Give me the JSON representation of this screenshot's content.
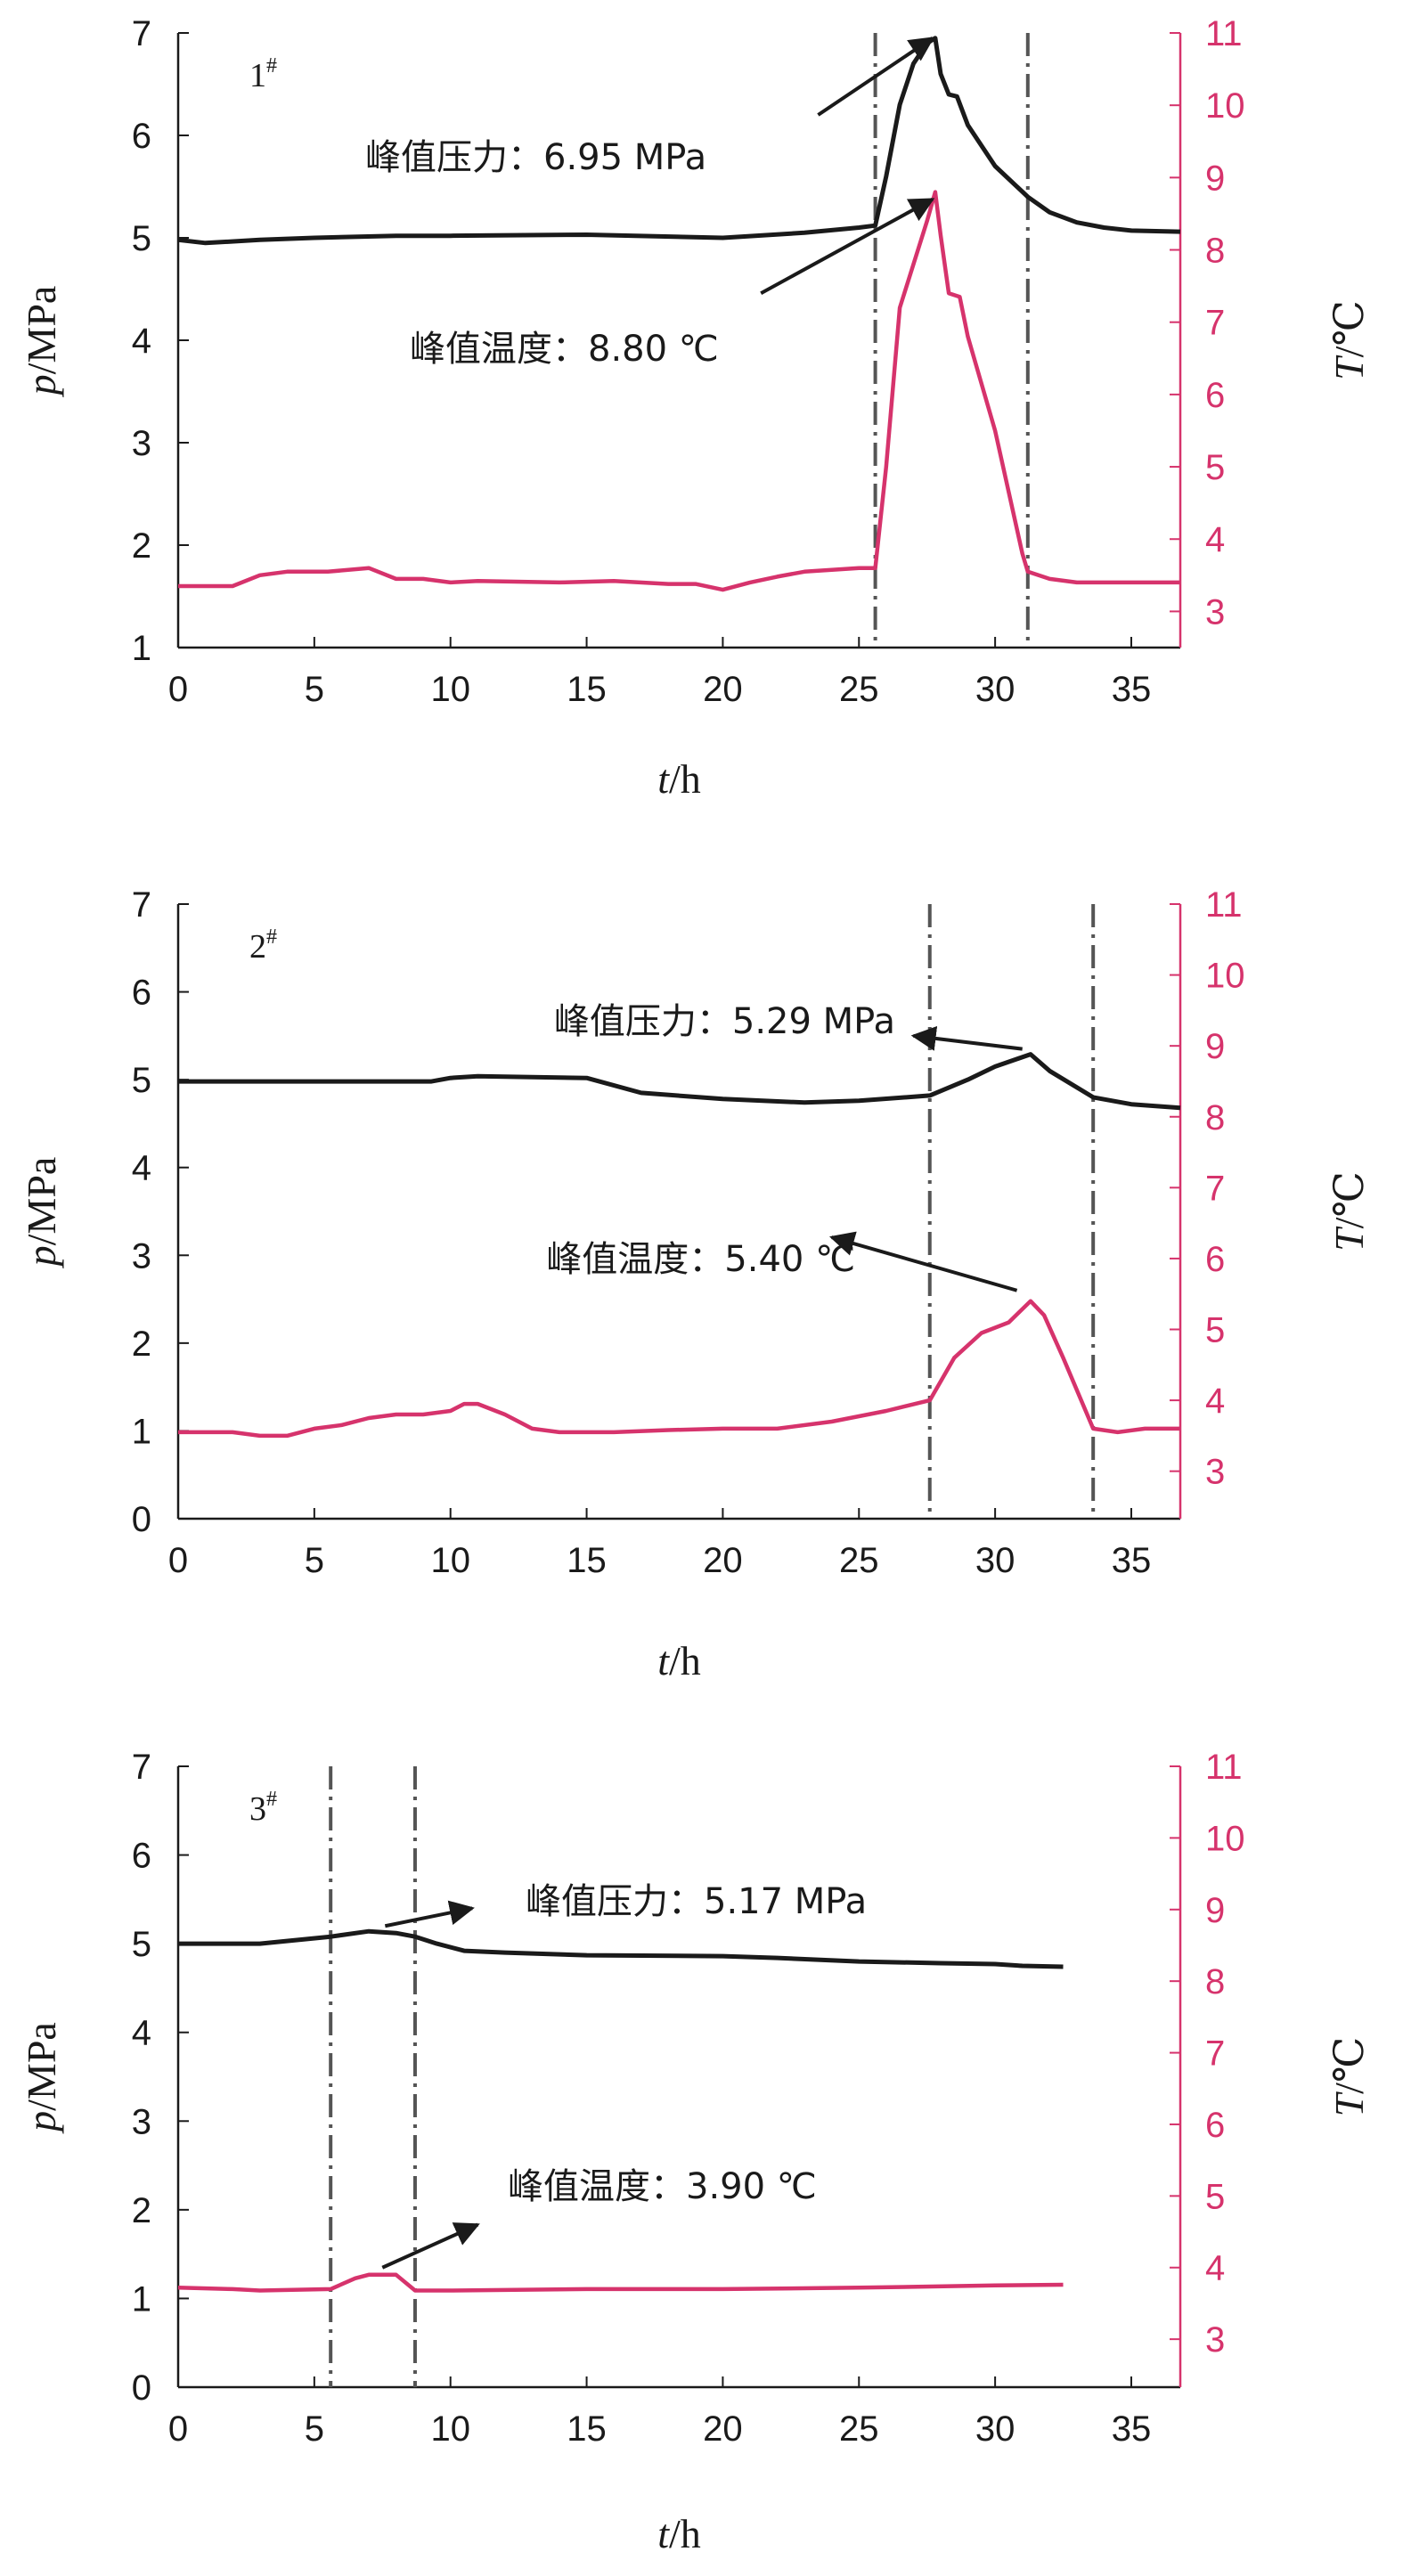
{
  "colors": {
    "pressure": "#1a1a1a",
    "temperature": "#d6336c",
    "axis_right": "#d6336c",
    "marker_dark": "#555555",
    "marker_green": "#1f8a70",
    "arrow": "#1a1a1a"
  },
  "chart_data": [
    {
      "type": "line",
      "panel_label": "1",
      "panel_label_sup": "#",
      "xlabel_italic": "t",
      "xlabel_unit": "/h",
      "ylabel_italic": "p",
      "ylabel_unit": "/MPa",
      "y2label_italic": "T",
      "y2label_unit": "/℃",
      "xlim": [
        0,
        36.8
      ],
      "ylim": [
        1,
        7
      ],
      "y2lim": [
        2.5,
        11
      ],
      "xticks": [
        0,
        5,
        10,
        15,
        20,
        25,
        30,
        35
      ],
      "yticks": [
        1,
        2,
        3,
        4,
        5,
        6,
        7
      ],
      "y2ticks": [
        3,
        4,
        5,
        6,
        7,
        8,
        9,
        10,
        11
      ],
      "markers": [
        25.6,
        31.2
      ],
      "series": [
        {
          "axis": "left",
          "x": [
            0,
            1,
            3,
            5,
            8,
            10,
            15,
            20,
            23,
            25,
            25.6,
            26,
            26.5,
            27,
            27.5,
            27.8,
            28,
            28.3,
            28.6,
            29,
            30,
            31.2,
            32,
            33,
            34,
            35,
            36.8
          ],
          "y": [
            4.98,
            4.95,
            4.98,
            5.0,
            5.02,
            5.02,
            5.03,
            5.0,
            5.05,
            5.1,
            5.12,
            5.6,
            6.3,
            6.7,
            6.9,
            6.95,
            6.6,
            6.4,
            6.38,
            6.1,
            5.7,
            5.4,
            5.25,
            5.15,
            5.1,
            5.07,
            5.06
          ]
        },
        {
          "axis": "right",
          "x": [
            0,
            2,
            3,
            4,
            5.5,
            7,
            8,
            9,
            10,
            11,
            14,
            16,
            18,
            19,
            20,
            21,
            22,
            23,
            25,
            25.6,
            26,
            26.5,
            27,
            27.5,
            27.8,
            28,
            28.3,
            28.7,
            29,
            30,
            31,
            31.2,
            32,
            33,
            35,
            36.8
          ],
          "y": [
            3.35,
            3.35,
            3.5,
            3.55,
            3.55,
            3.6,
            3.45,
            3.45,
            3.4,
            3.42,
            3.4,
            3.42,
            3.38,
            3.38,
            3.3,
            3.4,
            3.48,
            3.55,
            3.6,
            3.6,
            5.0,
            7.2,
            7.8,
            8.4,
            8.8,
            8.2,
            7.4,
            7.35,
            6.8,
            5.5,
            3.8,
            3.55,
            3.45,
            3.4,
            3.4,
            3.4
          ]
        }
      ],
      "annotations": [
        {
          "text": "峰值压力：6.95 MPa",
          "series_axis": "left",
          "tip": [
            27.7,
            6.95
          ],
          "tail": [
            23.5,
            6.2
          ]
        },
        {
          "text": "峰值温度：8.80 ℃",
          "series_axis": "right",
          "tip": [
            27.7,
            8.7
          ],
          "tail": [
            21.4,
            7.4
          ]
        }
      ]
    },
    {
      "type": "line",
      "panel_label": "2",
      "panel_label_sup": "#",
      "xlabel_italic": "t",
      "xlabel_unit": "/h",
      "ylabel_italic": "p",
      "ylabel_unit": "/MPa",
      "y2label_italic": "T",
      "y2label_unit": "/℃",
      "xlim": [
        0,
        36.8
      ],
      "ylim": [
        0,
        7
      ],
      "y2lim": [
        2.33,
        11
      ],
      "xticks": [
        0,
        5,
        10,
        15,
        20,
        25,
        30,
        35
      ],
      "yticks": [
        0,
        1,
        2,
        3,
        4,
        5,
        6,
        7
      ],
      "y2ticks": [
        3,
        4,
        5,
        6,
        7,
        8,
        9,
        10,
        11
      ],
      "markers": [
        27.6,
        33.6
      ],
      "series": [
        {
          "axis": "left",
          "x": [
            0,
            5,
            9.3,
            10,
            11,
            15,
            17,
            20,
            23,
            25,
            27.6,
            29,
            30,
            31.3,
            32,
            33.6,
            35,
            36.8
          ],
          "y": [
            4.98,
            4.98,
            4.98,
            5.02,
            5.04,
            5.02,
            4.85,
            4.78,
            4.74,
            4.76,
            4.82,
            5.0,
            5.15,
            5.29,
            5.1,
            4.8,
            4.72,
            4.68
          ]
        },
        {
          "axis": "right",
          "x": [
            0,
            2,
            3,
            4,
            5,
            6,
            7,
            8,
            9,
            10,
            10.5,
            11,
            12,
            13,
            14,
            16,
            18,
            20,
            22,
            24,
            26,
            27.6,
            28.5,
            29.5,
            30.5,
            31.3,
            31.8,
            32.5,
            33.6,
            34.5,
            35.5,
            36.8
          ],
          "y": [
            3.55,
            3.55,
            3.5,
            3.5,
            3.6,
            3.65,
            3.75,
            3.8,
            3.8,
            3.85,
            3.95,
            3.95,
            3.8,
            3.6,
            3.55,
            3.55,
            3.58,
            3.6,
            3.6,
            3.7,
            3.85,
            4.0,
            4.6,
            4.95,
            5.1,
            5.4,
            5.2,
            4.6,
            3.6,
            3.55,
            3.6,
            3.6
          ]
        }
      ],
      "annotations": [
        {
          "text": "峰值压力：5.29 MPa",
          "series_axis": "left",
          "tip": [
            27.0,
            5.5
          ],
          "tail": [
            31.0,
            5.35
          ]
        },
        {
          "text": "峰值温度：5.40 ℃",
          "series_axis": "right",
          "tip": [
            24.0,
            6.3
          ],
          "tail": [
            30.8,
            5.55
          ]
        }
      ]
    },
    {
      "type": "line",
      "panel_label": "3",
      "panel_label_sup": "#",
      "xlabel_italic": "t",
      "xlabel_unit": "/h",
      "ylabel_italic": "p",
      "ylabel_unit": "/MPa",
      "y2label_italic": "T",
      "y2label_unit": "/℃",
      "xlim": [
        0,
        36.8
      ],
      "ylim": [
        0,
        7
      ],
      "y2lim": [
        2.33,
        11
      ],
      "xticks": [
        0,
        5,
        10,
        15,
        20,
        25,
        30,
        35
      ],
      "yticks": [
        0,
        1,
        2,
        3,
        4,
        5,
        6,
        7
      ],
      "y2ticks": [
        3,
        4,
        5,
        6,
        7,
        8,
        9,
        10,
        11
      ],
      "markers": [
        5.6,
        8.7
      ],
      "series": [
        {
          "axis": "left",
          "x": [
            0,
            3,
            5.6,
            7,
            8,
            8.7,
            9.5,
            10.5,
            12,
            15,
            20,
            22,
            25,
            28,
            30,
            31,
            32.5
          ],
          "y": [
            5.0,
            5.0,
            5.08,
            5.14,
            5.12,
            5.08,
            5.0,
            4.92,
            4.9,
            4.87,
            4.86,
            4.84,
            4.8,
            4.78,
            4.77,
            4.75,
            4.74
          ]
        },
        {
          "axis": "right",
          "x": [
            0,
            2,
            3,
            5.6,
            6.5,
            7,
            8,
            8.7,
            10,
            15,
            20,
            25,
            30,
            32.5
          ],
          "y": [
            3.72,
            3.7,
            3.68,
            3.7,
            3.85,
            3.9,
            3.9,
            3.68,
            3.68,
            3.7,
            3.7,
            3.72,
            3.75,
            3.76
          ]
        }
      ],
      "annotations": [
        {
          "text": "峰值压力：5.17 MPa",
          "series_axis": "left",
          "tip": [
            10.8,
            5.4
          ],
          "tail": [
            7.6,
            5.2
          ]
        },
        {
          "text": "峰值温度：3.90 ℃",
          "series_axis": "right",
          "tip": [
            11.0,
            4.6
          ],
          "tail": [
            7.5,
            4.0
          ]
        }
      ]
    }
  ]
}
